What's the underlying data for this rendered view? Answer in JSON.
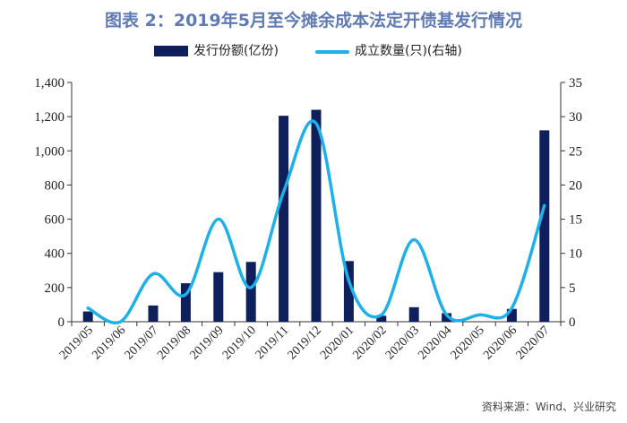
{
  "chart_data": {
    "type": "bar+line",
    "title": "图表 2：2019年5月至今摊余成本法定开债基发行情况",
    "categories": [
      "2019/05",
      "2019/06",
      "2019/07",
      "2019/08",
      "2019/09",
      "2019/10",
      "2019/11",
      "2019/12",
      "2020/01",
      "2020/02",
      "2020/03",
      "2020/04",
      "2020/05",
      "2020/06",
      "2020/07"
    ],
    "series": [
      {
        "name": "发行份额(亿份)",
        "type": "bar",
        "axis": "left",
        "color": "#0f1f5c",
        "values": [
          60,
          0,
          95,
          225,
          290,
          350,
          1205,
          1240,
          355,
          35,
          85,
          50,
          0,
          75,
          1120
        ]
      },
      {
        "name": "成立数量(只)(右轴)",
        "type": "line",
        "axis": "right",
        "color": "#1fb0e8",
        "values": [
          2,
          0,
          7,
          4,
          15,
          5,
          19,
          29,
          6,
          1,
          12,
          1,
          1,
          2,
          17
        ]
      }
    ],
    "ylim_left": [
      0,
      1400
    ],
    "yticks_left": [
      0,
      200,
      400,
      600,
      800,
      1000,
      1200,
      1400
    ],
    "yticklabels_left": [
      "0",
      "200",
      "400",
      "600",
      "800",
      "1,000",
      "1,200",
      "1,400"
    ],
    "ylim_right": [
      0,
      35
    ],
    "yticks_right": [
      0,
      5,
      10,
      15,
      20,
      25,
      30,
      35
    ],
    "yticklabels_right": [
      "0",
      "5",
      "10",
      "15",
      "20",
      "25",
      "30",
      "35"
    ],
    "legend_position": "top-center",
    "grid": false
  },
  "source_text": "资料来源：Wind、兴业研究"
}
